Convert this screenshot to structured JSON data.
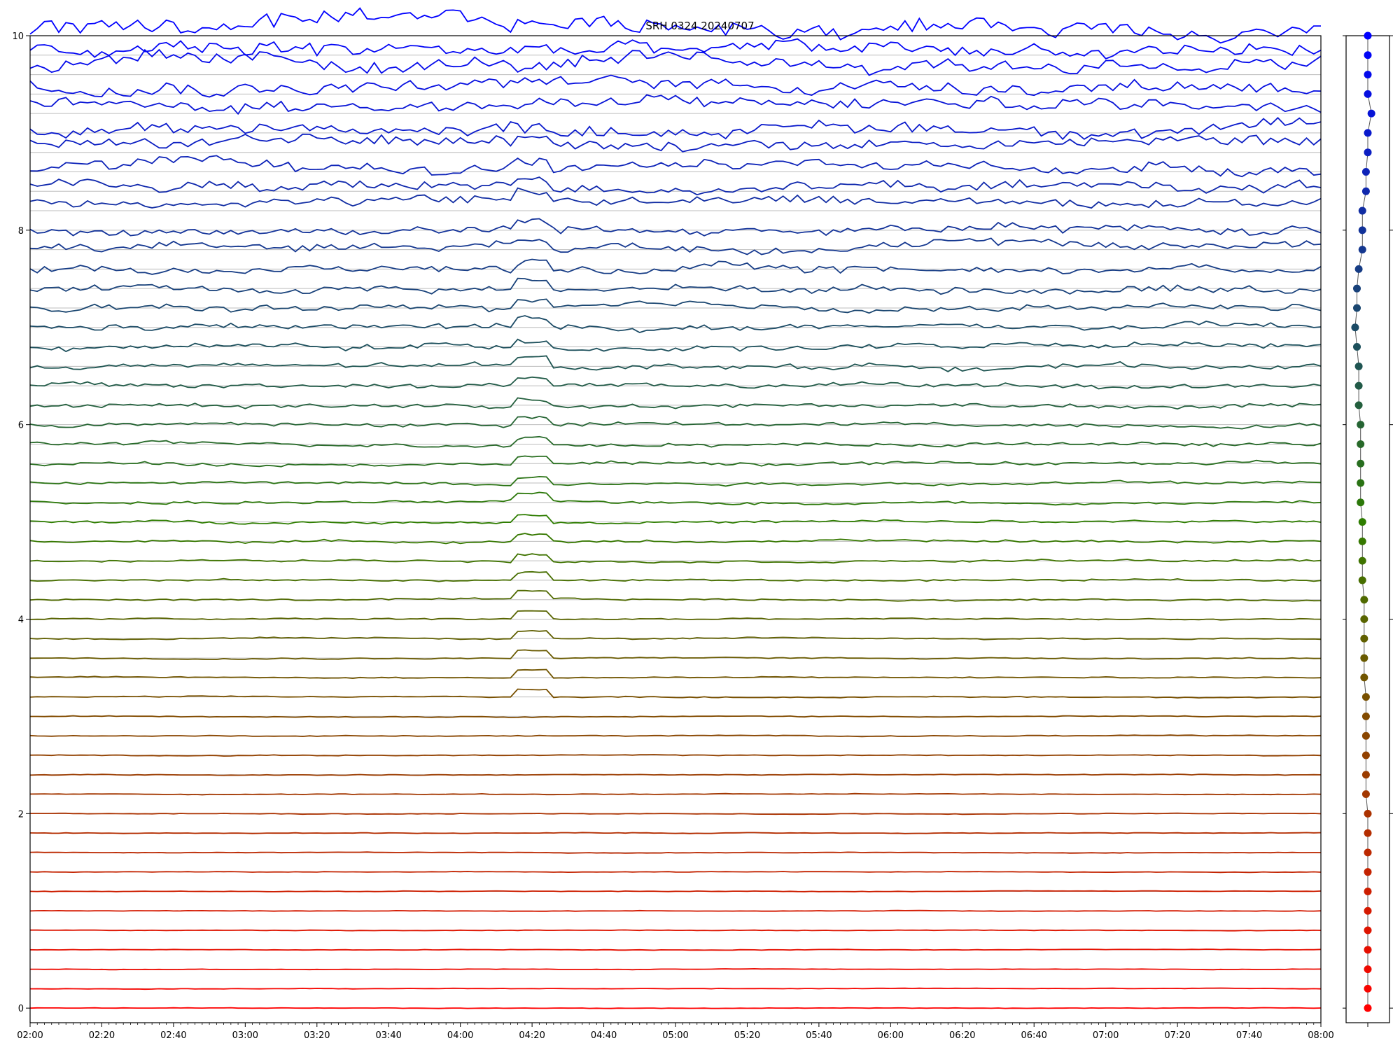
{
  "chart_data": {
    "type": "line",
    "title": "SRH 0324 20240707",
    "xlabel": "",
    "ylabel": "",
    "ylim": [
      -0.15,
      10
    ],
    "xlim": [
      "02:00",
      "08:00"
    ],
    "x_ticks": [
      "02:00",
      "02:20",
      "02:40",
      "03:00",
      "03:20",
      "03:40",
      "04:00",
      "04:20",
      "04:40",
      "05:00",
      "05:20",
      "05:40",
      "06:00",
      "06:20",
      "06:40",
      "07:00",
      "07:20",
      "07:40",
      "08:00"
    ],
    "y_ticks": [
      "0",
      "2",
      "4",
      "6",
      "8",
      "10"
    ],
    "grid": true,
    "legend": "none",
    "series_count": 51,
    "series_baseline_step": 0.2,
    "series_offsets": [
      0,
      0,
      0,
      0,
      0,
      0,
      0,
      0,
      0,
      0,
      0,
      0,
      0,
      0,
      0,
      0,
      0,
      0,
      0,
      0,
      0,
      0,
      0,
      0,
      0,
      0,
      0,
      0,
      0,
      0,
      0,
      0,
      0,
      0,
      0,
      0,
      0,
      0,
      0,
      0.05,
      0,
      0.1,
      0.05,
      0.05,
      0.1,
      0.05,
      0.1,
      0.1,
      0.1,
      0.05,
      0.1
    ],
    "colors": {
      "low": "#ff0000",
      "mid": "#2e7d00",
      "high": "#0000ff",
      "grid": "#bdbdbd",
      "marker_line": "#555555"
    },
    "side_panel": {
      "type": "scatter",
      "x_offsets": [
        0,
        0,
        0,
        0,
        0,
        0,
        0,
        0,
        0,
        0,
        0,
        -0.05,
        -0.05,
        -0.05,
        -0.05,
        -0.05,
        -0.05,
        -0.1,
        -0.1,
        -0.1,
        -0.1,
        -0.1,
        -0.15,
        -0.15,
        -0.15,
        -0.15,
        -0.2,
        -0.2,
        -0.2,
        -0.2,
        -0.2,
        -0.25,
        -0.25,
        -0.25,
        -0.3,
        -0.35,
        -0.3,
        -0.3,
        -0.25,
        -0.15,
        -0.15,
        -0.15,
        -0.05,
        -0.05,
        0,
        0,
        0.1,
        0,
        0,
        0,
        0
      ]
    }
  }
}
